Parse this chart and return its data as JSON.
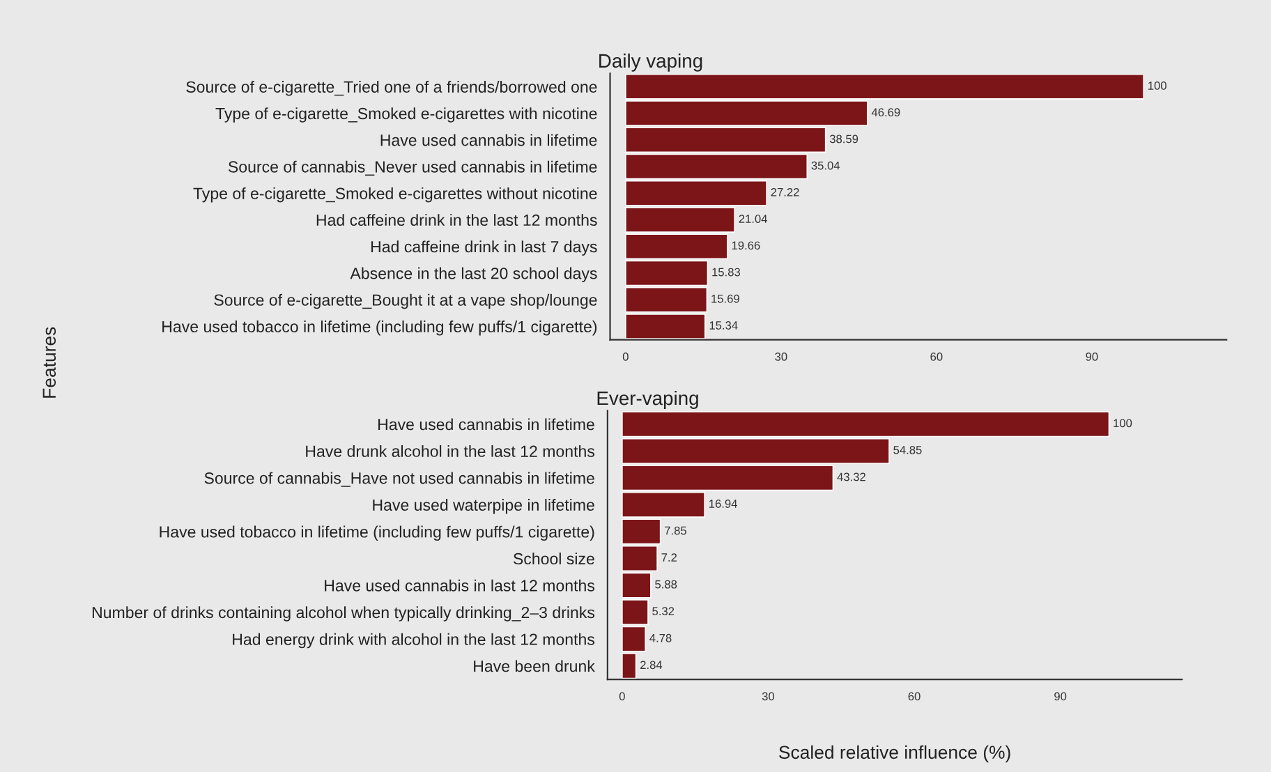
{
  "chart_data": [
    {
      "type": "bar",
      "orientation": "horizontal",
      "title": "Daily vaping",
      "ylabel": "Features",
      "categories": [
        "Source of e-cigarette_Tried one of a friends/borrowed one",
        "Type of e-cigarette_Smoked e-cigarettes with nicotine",
        "Have used cannabis in lifetime",
        "Source of cannabis_Never used cannabis in lifetime",
        "Type of e-cigarette_Smoked e-cigarettes without nicotine",
        "Had caffeine drink in the last 12 months",
        "Had caffeine drink in last 7 days",
        "Absence in the last 20 school days",
        "Source of e-cigarette_Bought it at a vape shop/lounge",
        "Have used tobacco in lifetime (including few puffs/1 cigarette)"
      ],
      "values": [
        100,
        46.69,
        38.59,
        35.04,
        27.22,
        21.04,
        19.66,
        15.83,
        15.69,
        15.34
      ],
      "color": "#7b1518",
      "data_labels": true,
      "xlim": [
        -3,
        116
      ],
      "xticks": [
        0,
        30,
        60,
        90
      ],
      "grid": false,
      "legend": false
    },
    {
      "type": "bar",
      "orientation": "horizontal",
      "title": "Ever-vaping",
      "xlabel": "Scaled relative influence (%)",
      "categories": [
        "Have used cannabis in lifetime",
        "Have drunk alcohol in the last 12 months",
        "Source of cannabis_Have not used cannabis in lifetime",
        "Have used waterpipe in lifetime",
        "Have used tobacco in lifetime (including few puffs/1 cigarette)",
        "School size",
        "Have used cannabis in last 12 months",
        "Number of drinks containing alcohol when typically drinking_2–3 drinks",
        "Had energy drink with alcohol in the last 12 months",
        "Have been drunk"
      ],
      "values": [
        100,
        54.85,
        43.32,
        16.94,
        7.85,
        7.2,
        5.88,
        5.32,
        4.78,
        2.84
      ],
      "color": "#7b1518",
      "data_labels": true,
      "xlim": [
        -3,
        115
      ],
      "xticks": [
        0,
        30,
        60,
        90
      ],
      "grid": false,
      "legend": false
    }
  ]
}
